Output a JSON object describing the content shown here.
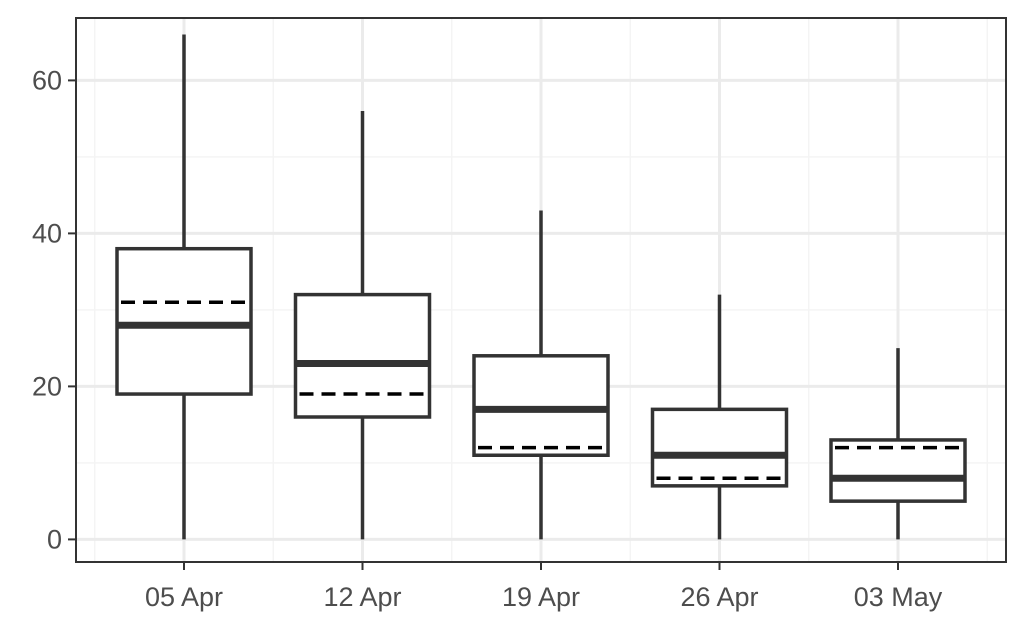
{
  "chart_data": {
    "type": "boxplot",
    "title": "",
    "xlabel": "",
    "ylabel": "",
    "categories": [
      "05 Apr",
      "12 Apr",
      "19 Apr",
      "26 Apr",
      "03 May"
    ],
    "ylim": [
      -3,
      67
    ],
    "yticks": [
      0,
      20,
      40,
      60
    ],
    "yticks_labels": [
      "0",
      "20",
      "40",
      "60"
    ],
    "grid": true,
    "series": [
      {
        "boxes": [
          {
            "category": "05 Apr",
            "min": 0,
            "q1": 19,
            "median": 28,
            "q3": 38,
            "max": 66,
            "dashed": 31
          },
          {
            "category": "12 Apr",
            "min": 0,
            "q1": 16,
            "median": 23,
            "q3": 32,
            "max": 56,
            "dashed": 19
          },
          {
            "category": "19 Apr",
            "min": 0,
            "q1": 11,
            "median": 17,
            "q3": 24,
            "max": 43,
            "dashed": 12
          },
          {
            "category": "26 Apr",
            "min": 0,
            "q1": 7,
            "median": 11,
            "q3": 17,
            "max": 32,
            "dashed": 8
          },
          {
            "category": "03 May",
            "min": 0,
            "q1": 5,
            "median": 8,
            "q3": 13,
            "max": 25,
            "dashed": 12
          }
        ]
      }
    ],
    "colors": {
      "box": "#333333",
      "grid_major": "#ebebeb",
      "grid_minor": "#f4f4f4",
      "panel_border": "#333333",
      "tick_text": "#4d4d4d"
    }
  }
}
